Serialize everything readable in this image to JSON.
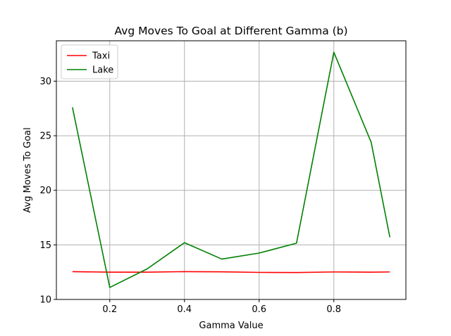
{
  "chart_data": {
    "type": "line",
    "title": "Avg Moves To Goal at Different Gamma (b)",
    "xlabel": "Gamma Value",
    "ylabel": "Avg Moves To Goal",
    "x": [
      0.1,
      0.2,
      0.3,
      0.4,
      0.5,
      0.6,
      0.7,
      0.8,
      0.9,
      0.95
    ],
    "series": [
      {
        "name": "Taxi",
        "color": "#ff0000",
        "values": [
          12.55,
          12.5,
          12.5,
          12.55,
          12.53,
          12.48,
          12.47,
          12.52,
          12.5,
          12.52
        ]
      },
      {
        "name": "Lake",
        "color": "#008000",
        "values": [
          27.6,
          11.1,
          12.8,
          15.2,
          13.7,
          14.25,
          15.15,
          32.65,
          24.4,
          15.7
        ]
      }
    ],
    "xlim": [
      0.057,
      0.993
    ],
    "ylim": [
      10,
      33.7
    ],
    "xticks": [
      0.2,
      0.4,
      0.6,
      0.8
    ],
    "xtick_labels": [
      "0.2",
      "0.4",
      "0.6",
      "0.8"
    ],
    "yticks": [
      10,
      15,
      20,
      25,
      30
    ],
    "ytick_labels": [
      "10",
      "15",
      "20",
      "25",
      "30"
    ],
    "grid": true,
    "legend_position": "top-left"
  }
}
